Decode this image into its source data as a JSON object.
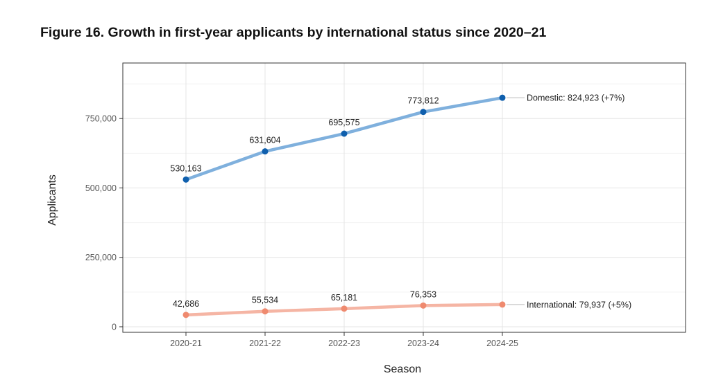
{
  "title": "Figure 16. Growth in first-year applicants by international status since 2020–21",
  "chart_data": {
    "type": "line",
    "categories": [
      "2020-21",
      "2021-22",
      "2022-23",
      "2023-24",
      "2024-25"
    ],
    "xlabel": "Season",
    "ylabel": "Applicants",
    "ylim": [
      -20000,
      950000
    ],
    "yticks": [
      0,
      250000,
      500000,
      750000
    ],
    "ytick_labels": [
      "0",
      "250,000",
      "500,000",
      "750,000"
    ],
    "grid": true,
    "legend": "direct labels at line ends",
    "series": [
      {
        "name": "Domestic",
        "values": [
          530163,
          631604,
          695575,
          773812,
          824923
        ],
        "point_labels": [
          "530,163",
          "631,604",
          "695,575",
          "773,812"
        ],
        "end_label": "Domestic: 824,923 (+7%)",
        "line_color": "#7fb0dd",
        "point_color": "#0f5fad"
      },
      {
        "name": "International",
        "values": [
          42686,
          55534,
          65181,
          76353,
          79937
        ],
        "point_labels": [
          "42,686",
          "55,534",
          "65,181",
          "76,353"
        ],
        "end_label": "International: 79,937 (+5%)",
        "line_color": "#f5b5a4",
        "point_color": "#ef8a6f"
      }
    ]
  }
}
